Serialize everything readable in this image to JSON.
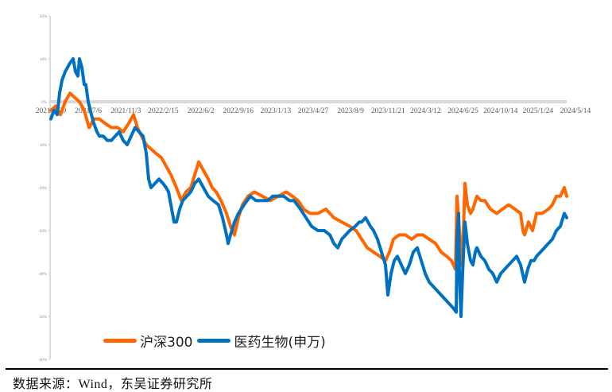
{
  "chart_data": {
    "type": "line",
    "title": "",
    "xlabel": "",
    "ylabel": "",
    "ylim": [
      -60,
      20
    ],
    "yticks": [
      "20%",
      "10%",
      "0%",
      "-10%",
      "-20%",
      "-30%",
      "-40%",
      "-50%",
      "-60%"
    ],
    "ytick_values": [
      20,
      10,
      0,
      -10,
      -20,
      -30,
      -40,
      -50,
      -60
    ],
    "xtick_labels": [
      "2021/3/29",
      "2021/7/6",
      "2021/11/3",
      "2022/2/15",
      "2022/6/2",
      "2022/9/16",
      "2023/1/13",
      "2023/4/27",
      "2023/8/9",
      "2023/11/21",
      "2024/3/12",
      "2024/6/25",
      "2024/10/14",
      "2025/1/24",
      "2024/5/14"
    ],
    "grid": false,
    "legend_position": "bottom-left inside",
    "series": [
      {
        "name": "沪深300",
        "color": "#FF6600",
        "points": [
          [
            64,
            -2
          ],
          [
            70,
            -1
          ],
          [
            76,
            -3
          ],
          [
            82,
            0
          ],
          [
            88,
            2
          ],
          [
            94,
            1
          ],
          [
            100,
            0
          ],
          [
            106,
            -2
          ],
          [
            112,
            -6
          ],
          [
            118,
            -4
          ],
          [
            125,
            -4
          ],
          [
            132,
            -5
          ],
          [
            140,
            -6
          ],
          [
            148,
            -6
          ],
          [
            155,
            -7
          ],
          [
            162,
            -5
          ],
          [
            168,
            -3
          ],
          [
            173,
            -6
          ],
          [
            178,
            -8
          ],
          [
            184,
            -10
          ],
          [
            190,
            -11
          ],
          [
            196,
            -12
          ],
          [
            203,
            -13
          ],
          [
            209,
            -15
          ],
          [
            215,
            -17
          ],
          [
            222,
            -20
          ],
          [
            228,
            -23
          ],
          [
            234,
            -21
          ],
          [
            240,
            -20
          ],
          [
            245,
            -17
          ],
          [
            250,
            -14
          ],
          [
            256,
            -16
          ],
          [
            262,
            -18
          ],
          [
            267,
            -20
          ],
          [
            272,
            -21
          ],
          [
            278,
            -23
          ],
          [
            285,
            -26
          ],
          [
            290,
            -29
          ],
          [
            295,
            -31
          ],
          [
            300,
            -27
          ],
          [
            305,
            -24
          ],
          [
            312,
            -22
          ],
          [
            320,
            -21
          ],
          [
            330,
            -22
          ],
          [
            340,
            -23
          ],
          [
            350,
            -22
          ],
          [
            360,
            -21
          ],
          [
            368,
            -22
          ],
          [
            375,
            -23
          ],
          [
            382,
            -25
          ],
          [
            390,
            -26
          ],
          [
            400,
            -26
          ],
          [
            410,
            -25
          ],
          [
            415,
            -26
          ],
          [
            420,
            -27
          ],
          [
            430,
            -28
          ],
          [
            440,
            -29
          ],
          [
            448,
            -30
          ],
          [
            455,
            -32
          ],
          [
            462,
            -34
          ],
          [
            470,
            -35
          ],
          [
            478,
            -36
          ],
          [
            485,
            -37
          ],
          [
            490,
            -35
          ],
          [
            495,
            -32
          ],
          [
            502,
            -31
          ],
          [
            510,
            -31
          ],
          [
            518,
            -32
          ],
          [
            525,
            -31
          ],
          [
            532,
            -31
          ],
          [
            540,
            -32
          ],
          [
            548,
            -33
          ],
          [
            555,
            -35
          ],
          [
            562,
            -36
          ],
          [
            568,
            -37
          ],
          [
            573,
            -39
          ],
          [
            575,
            -22
          ],
          [
            578,
            -30
          ],
          [
            580,
            -38
          ],
          [
            583,
            -30
          ],
          [
            585,
            -19
          ],
          [
            588,
            -24
          ],
          [
            592,
            -26
          ],
          [
            595,
            -25
          ],
          [
            600,
            -22
          ],
          [
            605,
            -23
          ],
          [
            610,
            -23
          ],
          [
            617,
            -25
          ],
          [
            625,
            -26
          ],
          [
            632,
            -25
          ],
          [
            640,
            -24
          ],
          [
            648,
            -25
          ],
          [
            655,
            -26
          ],
          [
            658,
            -30
          ],
          [
            660,
            -31
          ],
          [
            665,
            -28
          ],
          [
            670,
            -30
          ],
          [
            675,
            -26
          ],
          [
            682,
            -26
          ],
          [
            690,
            -25
          ],
          [
            695,
            -24
          ],
          [
            700,
            -22
          ],
          [
            705,
            -22
          ],
          [
            710,
            -20
          ],
          [
            713,
            -22
          ]
        ]
      },
      {
        "name": "医药生物(申万)",
        "color": "#0070C0",
        "points": [
          [
            64,
            -4
          ],
          [
            68,
            -2
          ],
          [
            72,
            -3
          ],
          [
            75,
            2
          ],
          [
            78,
            5
          ],
          [
            82,
            7
          ],
          [
            85,
            8
          ],
          [
            88,
            9
          ],
          [
            92,
            10
          ],
          [
            95,
            7
          ],
          [
            98,
            6
          ],
          [
            100,
            10
          ],
          [
            103,
            8
          ],
          [
            106,
            4
          ],
          [
            108,
            4
          ],
          [
            111,
            0
          ],
          [
            115,
            -3
          ],
          [
            118,
            -5
          ],
          [
            122,
            -7
          ],
          [
            125,
            -8
          ],
          [
            130,
            -8
          ],
          [
            135,
            -9
          ],
          [
            140,
            -9
          ],
          [
            145,
            -8
          ],
          [
            150,
            -7
          ],
          [
            155,
            -9
          ],
          [
            160,
            -10
          ],
          [
            165,
            -8
          ],
          [
            170,
            -6
          ],
          [
            175,
            -7
          ],
          [
            180,
            -8
          ],
          [
            184,
            -12
          ],
          [
            187,
            -18
          ],
          [
            190,
            -20
          ],
          [
            195,
            -19
          ],
          [
            200,
            -18
          ],
          [
            205,
            -19
          ],
          [
            209,
            -20
          ],
          [
            212,
            -21
          ],
          [
            216,
            -25
          ],
          [
            219,
            -28
          ],
          [
            222,
            -28
          ],
          [
            226,
            -25
          ],
          [
            230,
            -23
          ],
          [
            235,
            -22
          ],
          [
            240,
            -21
          ],
          [
            245,
            -19
          ],
          [
            250,
            -18
          ],
          [
            256,
            -20
          ],
          [
            262,
            -22
          ],
          [
            268,
            -23
          ],
          [
            275,
            -24
          ],
          [
            280,
            -27
          ],
          [
            285,
            -31
          ],
          [
            287,
            -33
          ],
          [
            290,
            -31
          ],
          [
            295,
            -28
          ],
          [
            300,
            -26
          ],
          [
            307,
            -24
          ],
          [
            315,
            -22
          ],
          [
            322,
            -23
          ],
          [
            330,
            -23
          ],
          [
            337,
            -23
          ],
          [
            343,
            -22
          ],
          [
            350,
            -22
          ],
          [
            357,
            -22
          ],
          [
            364,
            -23
          ],
          [
            370,
            -23
          ],
          [
            378,
            -25
          ],
          [
            385,
            -27
          ],
          [
            392,
            -29
          ],
          [
            400,
            -30
          ],
          [
            408,
            -30
          ],
          [
            415,
            -31
          ],
          [
            420,
            -33
          ],
          [
            425,
            -34
          ],
          [
            430,
            -32
          ],
          [
            435,
            -31
          ],
          [
            440,
            -30
          ],
          [
            447,
            -29
          ],
          [
            452,
            -28
          ],
          [
            455,
            -28
          ],
          [
            460,
            -27
          ],
          [
            466,
            -29
          ],
          [
            470,
            -30
          ],
          [
            475,
            -32
          ],
          [
            480,
            -35
          ],
          [
            485,
            -38
          ],
          [
            488,
            -45
          ],
          [
            492,
            -40
          ],
          [
            496,
            -37
          ],
          [
            500,
            -36
          ],
          [
            505,
            -38
          ],
          [
            510,
            -40
          ],
          [
            515,
            -38
          ],
          [
            520,
            -35
          ],
          [
            525,
            -34
          ],
          [
            530,
            -37
          ],
          [
            535,
            -40
          ],
          [
            540,
            -42
          ],
          [
            545,
            -43
          ],
          [
            550,
            -44
          ],
          [
            555,
            -45
          ],
          [
            560,
            -46
          ],
          [
            565,
            -47
          ],
          [
            570,
            -48
          ],
          [
            574,
            -49
          ],
          [
            575,
            -32
          ],
          [
            577,
            -26
          ],
          [
            578,
            -40
          ],
          [
            580,
            -50
          ],
          [
            582,
            -40
          ],
          [
            585,
            -28
          ],
          [
            588,
            -33
          ],
          [
            592,
            -37
          ],
          [
            595,
            -38
          ],
          [
            598,
            -35
          ],
          [
            600,
            -34
          ],
          [
            605,
            -36
          ],
          [
            610,
            -37
          ],
          [
            615,
            -39
          ],
          [
            620,
            -40
          ],
          [
            625,
            -42
          ],
          [
            630,
            -40
          ],
          [
            635,
            -39
          ],
          [
            640,
            -38
          ],
          [
            645,
            -37
          ],
          [
            650,
            -36
          ],
          [
            655,
            -38
          ],
          [
            660,
            -42
          ],
          [
            664,
            -39
          ],
          [
            668,
            -37
          ],
          [
            672,
            -37
          ],
          [
            675,
            -36
          ],
          [
            680,
            -35
          ],
          [
            685,
            -34
          ],
          [
            690,
            -33
          ],
          [
            695,
            -32
          ],
          [
            700,
            -30
          ],
          [
            705,
            -29
          ],
          [
            710,
            -26
          ],
          [
            713,
            -27
          ]
        ]
      }
    ]
  },
  "legend": {
    "items": [
      {
        "label": "沪深300",
        "color": "#FF6600"
      },
      {
        "label": "医药生物(申万)",
        "color": "#0070C0"
      }
    ]
  },
  "source": {
    "text": "数据来源：Wind，东吴证券研究所"
  }
}
